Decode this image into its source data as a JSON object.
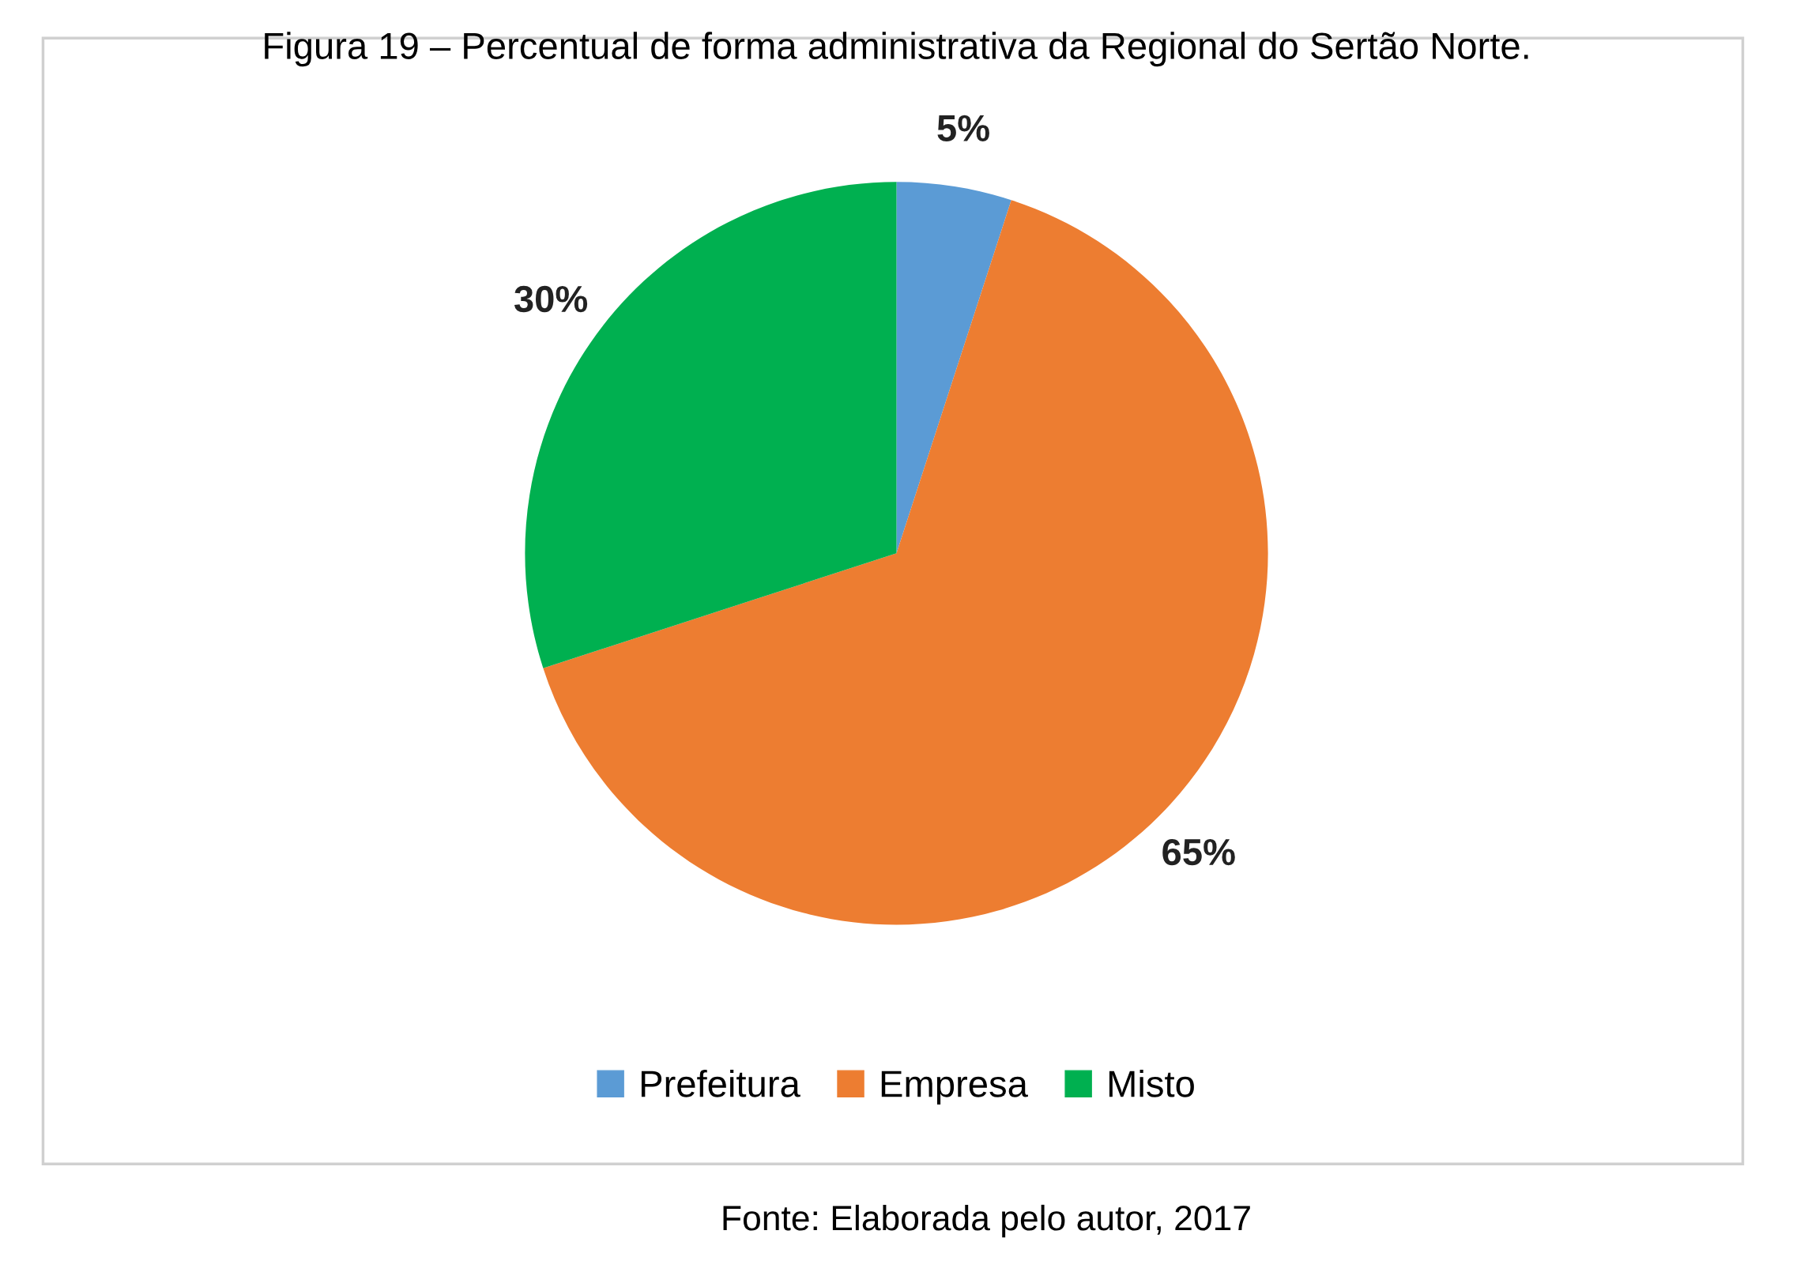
{
  "chart_data": {
    "type": "pie",
    "title": "Figura 19 – Percentual de forma administrativa da Regional do Sertão Norte.",
    "categories": [
      "Prefeitura",
      "Empresa",
      "Misto"
    ],
    "values": [
      5,
      65,
      30
    ],
    "colors": [
      "#5b9bd5",
      "#ed7d31",
      "#00b050"
    ],
    "value_labels": [
      "5%",
      "65%",
      "30%"
    ],
    "legend": "bottom",
    "annotations": [
      "Fonte: Elaborada pelo autor, 2017"
    ]
  }
}
